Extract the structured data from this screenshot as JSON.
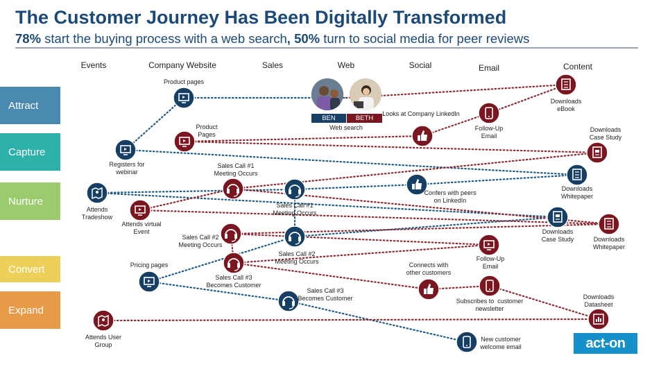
{
  "header": {
    "title": "The Customer Journey Has Been Digitally Transformed",
    "subtitle_pct1": "78%",
    "subtitle_text1": "start the buying  process with a web search",
    "subtitle_sep": ",",
    "subtitle_pct2": "50%",
    "subtitle_text2": "turn to social media for peer reviews"
  },
  "columns": [
    {
      "label": "Events"
    },
    {
      "label": "Company Website"
    },
    {
      "label": "Sales"
    },
    {
      "label": "Web"
    },
    {
      "label": "Social"
    },
    {
      "label": "Email"
    },
    {
      "label": "Content"
    }
  ],
  "stages": [
    {
      "label": "Attract",
      "color": "#4b8ab0"
    },
    {
      "label": "Capture",
      "color": "#2fb1ab"
    },
    {
      "label": "Nurture",
      "color": "#9bcb6c"
    },
    {
      "label": "Convert",
      "color": "#ecd05a"
    },
    {
      "label": "Expand",
      "color": "#e89a47"
    }
  ],
  "personas": [
    {
      "name": "BEN",
      "color": "#183f66"
    },
    {
      "name": "BETH",
      "color": "#7a1620"
    }
  ],
  "colors": {
    "blue_node": "#163f63",
    "red_node": "#7a1620",
    "blue_line": "#1e5a85",
    "red_line": "#8c2a33"
  },
  "nodes": [
    {
      "id": "product-pages-ben",
      "label": "Product pages",
      "icon": "screen-icon",
      "color": "blue"
    },
    {
      "id": "web-search",
      "label": "Web search",
      "icon": "photo",
      "color": "none"
    },
    {
      "id": "downloads-ebook",
      "label": "Downloads\neBook",
      "icon": "book-icon",
      "color": "red"
    },
    {
      "id": "product-pages-beth",
      "label": "Product\nPages",
      "icon": "screen-icon",
      "color": "red"
    },
    {
      "id": "looks-linkedin",
      "label": "Looks at Company LinkedIn",
      "icon": "thumbs-up-icon",
      "color": "red"
    },
    {
      "id": "followup-email-1",
      "label": "Follow-Up\nEmail",
      "icon": "phone-icon",
      "color": "red"
    },
    {
      "id": "downloads-case-study-1",
      "label": "Downloads\nCase Study",
      "icon": "document-icon",
      "color": "red"
    },
    {
      "id": "registers-webinar",
      "label": "Registers for\nwebinar",
      "icon": "screen-icon",
      "color": "blue"
    },
    {
      "id": "sales-call-1-beth",
      "label": "Sales Call #1\nMeeting Occurs",
      "icon": "headset-icon",
      "color": "red"
    },
    {
      "id": "sales-call-1-ben",
      "label": "Sales Call #1\nMeeting Occurs",
      "icon": "headset-icon",
      "color": "blue"
    },
    {
      "id": "confers-peers",
      "label": "Confers with peers\non LinkedIn",
      "icon": "thumbs-up-icon",
      "color": "blue"
    },
    {
      "id": "downloads-whitepaper-1",
      "label": "Downloads\nWhitepaper",
      "icon": "book-icon",
      "color": "blue"
    },
    {
      "id": "attends-tradeshow",
      "label": "Attends\nTradeshow",
      "icon": "map-icon",
      "color": "blue"
    },
    {
      "id": "attends-virtual-event",
      "label": "Attends virtual\nEvent",
      "icon": "screen-icon",
      "color": "red"
    },
    {
      "id": "downloads-case-study-2",
      "label": "Downloads\nCase Study",
      "icon": "document-icon",
      "color": "blue"
    },
    {
      "id": "downloads-whitepaper-2",
      "label": "Downloads\nWhitepaper",
      "icon": "book-icon",
      "color": "red"
    },
    {
      "id": "sales-call-2-beth",
      "label": "Sales Call #2\nMeeting Occurs",
      "icon": "headset-icon",
      "color": "red"
    },
    {
      "id": "sales-call-2-ben",
      "label": "Sales Call #2\nMeeting Occurs",
      "icon": "headset-icon",
      "color": "blue"
    },
    {
      "id": "followup-email-2",
      "label": "Follow-Up\nEmail",
      "icon": "screen-icon",
      "color": "red"
    },
    {
      "id": "pricing-pages",
      "label": "Pricing pages",
      "icon": "screen-icon",
      "color": "blue"
    },
    {
      "id": "sales-call-3-beth",
      "label": "Sales Call #3\nBecomes Customer",
      "icon": "headset-icon",
      "color": "red"
    },
    {
      "id": "connects-customers",
      "label": "Connects with\nother customers",
      "icon": "thumbs-up-icon",
      "color": "red"
    },
    {
      "id": "subscribes-newsletter",
      "label": "Subscribes to  customer\nnewsletter",
      "icon": "phone-icon",
      "color": "red"
    },
    {
      "id": "sales-call-3-ben",
      "label": "Sales Call #3\nBecomes Customer",
      "icon": "headset-icon",
      "color": "blue"
    },
    {
      "id": "downloads-datasheet",
      "label": "Downloads\nDatasheet",
      "icon": "chart-icon",
      "color": "red"
    },
    {
      "id": "attends-user-group",
      "label": "Attends User\nGroup",
      "icon": "map-icon",
      "color": "red"
    },
    {
      "id": "welcome-email",
      "label": "New customer\nwelcome email",
      "icon": "phone-icon",
      "color": "blue"
    }
  ],
  "logo": {
    "text": "act-on"
  }
}
